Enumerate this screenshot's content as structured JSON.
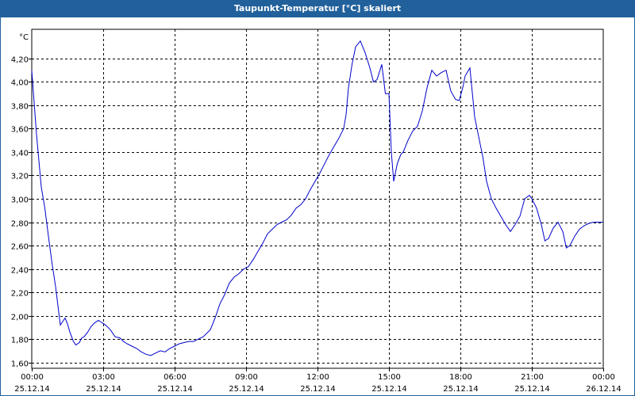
{
  "window": {
    "title": "Taupunkt-Temperatur [°C] skaliert"
  },
  "chart_data": {
    "type": "line",
    "title": "Taupunkt-Temperatur [°C] skaliert",
    "ylabel": "°C",
    "ylim": [
      1.55,
      4.45
    ],
    "xlim": [
      "25.12.14 00:00",
      "26.12.14 00:00"
    ],
    "grid": true,
    "y_ticks": [
      "1,60",
      "1,80",
      "2,00",
      "2,20",
      "2,40",
      "2,60",
      "2,80",
      "3,00",
      "3,20",
      "3,40",
      "3,60",
      "3,80",
      "4,00",
      "4,20"
    ],
    "y_tick_values": [
      1.6,
      1.8,
      2.0,
      2.2,
      2.4,
      2.6,
      2.8,
      3.0,
      3.2,
      3.4,
      3.6,
      3.8,
      4.0,
      4.2
    ],
    "x_ticks": [
      {
        "time": "00:00",
        "date": "25.12.14"
      },
      {
        "time": "03:00",
        "date": "25.12.14"
      },
      {
        "time": "06:00",
        "date": "25.12.14"
      },
      {
        "time": "09:00",
        "date": "25.12.14"
      },
      {
        "time": "12:00",
        "date": "25.12.14"
      },
      {
        "time": "15:00",
        "date": "25.12.14"
      },
      {
        "time": "18:00",
        "date": "25.12.14"
      },
      {
        "time": "21:00",
        "date": "25.12.14"
      },
      {
        "time": "00:00",
        "date": "26.12.14"
      }
    ],
    "x_tick_hours": [
      0,
      3,
      6,
      9,
      12,
      15,
      18,
      21,
      24
    ],
    "series": [
      {
        "color": "#0000cc",
        "x_hours": [
          0.0,
          0.2,
          0.4,
          0.55,
          0.7,
          0.85,
          1.0,
          1.2,
          1.4,
          1.5,
          1.6,
          1.75,
          1.85,
          2.0,
          2.1,
          2.2,
          2.35,
          2.5,
          2.65,
          2.8,
          2.95,
          3.1,
          3.3,
          3.5,
          3.7,
          3.85,
          4.0,
          4.2,
          4.4,
          4.6,
          4.8,
          5.0,
          5.2,
          5.4,
          5.6,
          5.8,
          6.0,
          6.2,
          6.4,
          6.6,
          6.8,
          7.0,
          7.2,
          7.5,
          7.7,
          7.9,
          8.1,
          8.3,
          8.5,
          8.7,
          8.9,
          9.1,
          9.3,
          9.5,
          9.7,
          9.9,
          10.1,
          10.3,
          10.5,
          10.7,
          10.9,
          11.1,
          11.3,
          11.5,
          11.7,
          11.9,
          12.1,
          12.3,
          12.5,
          12.7,
          12.9,
          13.1,
          13.2,
          13.3,
          13.45,
          13.6,
          13.8,
          14.0,
          14.2,
          14.35,
          14.5,
          14.7,
          14.85,
          15.0,
          15.1,
          15.2,
          15.35,
          15.5,
          15.6,
          15.8,
          16.0,
          16.2,
          16.4,
          16.6,
          16.8,
          17.0,
          17.2,
          17.4,
          17.6,
          17.8,
          17.95,
          18.1,
          18.2,
          18.4,
          18.6,
          18.8,
          18.95,
          19.1,
          19.3,
          19.5,
          19.7,
          19.9,
          20.1,
          20.3,
          20.5,
          20.7,
          20.9,
          21.0,
          21.2,
          21.4,
          21.55,
          21.7,
          21.9,
          22.1,
          22.3,
          22.45,
          22.6,
          22.8,
          23.0,
          23.2,
          23.4,
          23.6,
          23.8,
          24.0
        ],
        "y": [
          4.1,
          3.55,
          3.1,
          2.92,
          2.68,
          2.45,
          2.25,
          1.92,
          1.98,
          1.93,
          1.86,
          1.78,
          1.75,
          1.77,
          1.81,
          1.82,
          1.86,
          1.91,
          1.94,
          1.96,
          1.94,
          1.92,
          1.88,
          1.82,
          1.81,
          1.78,
          1.76,
          1.74,
          1.72,
          1.69,
          1.67,
          1.66,
          1.68,
          1.7,
          1.69,
          1.72,
          1.74,
          1.76,
          1.77,
          1.78,
          1.78,
          1.8,
          1.82,
          1.88,
          1.98,
          2.1,
          2.18,
          2.28,
          2.33,
          2.36,
          2.4,
          2.42,
          2.48,
          2.55,
          2.62,
          2.7,
          2.74,
          2.78,
          2.8,
          2.82,
          2.86,
          2.92,
          2.95,
          3.0,
          3.08,
          3.15,
          3.22,
          3.3,
          3.38,
          3.45,
          3.52,
          3.6,
          3.72,
          3.95,
          4.15,
          4.3,
          4.35,
          4.25,
          4.12,
          4.0,
          4.02,
          4.15,
          3.9,
          3.9,
          3.4,
          3.15,
          3.3,
          3.38,
          3.4,
          3.5,
          3.58,
          3.62,
          3.75,
          3.95,
          4.1,
          4.05,
          4.08,
          4.1,
          3.92,
          3.85,
          3.84,
          3.95,
          4.05,
          4.12,
          3.7,
          3.5,
          3.35,
          3.15,
          3.0,
          2.92,
          2.85,
          2.78,
          2.72,
          2.78,
          2.85,
          3.0,
          3.03,
          3.0,
          2.92,
          2.78,
          2.64,
          2.66,
          2.75,
          2.8,
          2.72,
          2.58,
          2.6,
          2.68,
          2.74,
          2.77,
          2.79,
          2.8,
          2.8,
          2.8
        ]
      }
    ]
  }
}
